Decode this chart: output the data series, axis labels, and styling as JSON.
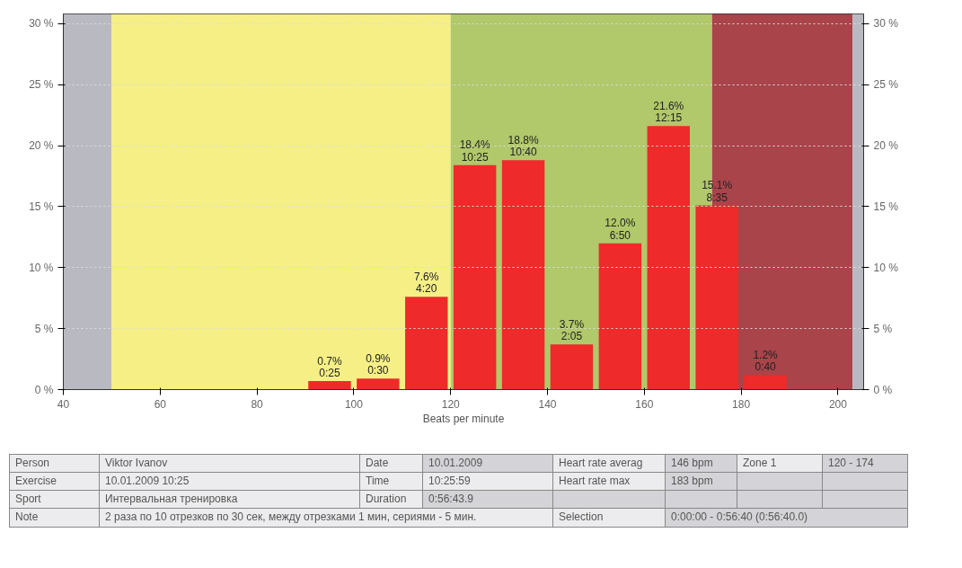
{
  "chart_data": {
    "type": "histogram",
    "xlabel": "Beats per minute",
    "bins": [
      90,
      100,
      110,
      120,
      130,
      140,
      150,
      160,
      170,
      180,
      190
    ],
    "values": [
      0.7,
      0.9,
      7.6,
      18.4,
      18.8,
      3.7,
      12.0,
      21.6,
      15.1,
      1.2
    ],
    "value_labels": [
      "0.7%\n0:25",
      "0.9%\n0:30",
      "7.6%\n4:20",
      "18.4%\n10:25",
      "18.8%\n10:40",
      "3.7%\n2:05",
      "12.0%\n6:50",
      "21.6%\n12:15",
      "15.1%\n8:35",
      "1.2%\n0:40"
    ],
    "color": "#ee2a2a",
    "xlim": [
      40,
      205.3
    ],
    "xticks": [
      40,
      60,
      80,
      100,
      120,
      140,
      160,
      180,
      200
    ],
    "ylim": [
      0,
      30.8
    ],
    "yticks": [
      {
        "value": 0,
        "label": "0 %"
      },
      {
        "value": 5,
        "label": "5 %"
      },
      {
        "value": 10,
        "label": "10 %"
      },
      {
        "value": 15,
        "label": "15 %"
      },
      {
        "value": 20,
        "label": "20 %"
      },
      {
        "value": 25,
        "label": "25 %"
      },
      {
        "value": 30,
        "label": "30 %"
      }
    ],
    "y2lim": [
      0,
      30.8
    ],
    "y2ticks": [
      {
        "value": 0,
        "label": "0 %"
      },
      {
        "value": 5,
        "label": "5 %"
      },
      {
        "value": 10,
        "label": "10 %"
      },
      {
        "value": 15,
        "label": "15 %"
      },
      {
        "value": 20,
        "label": "20 %"
      },
      {
        "value": 25,
        "label": "25 %"
      },
      {
        "value": 30,
        "label": "30 %"
      }
    ],
    "grid": "y",
    "bands": [
      {
        "axis": "x",
        "from": 40,
        "to": 50,
        "color": "#b9b9c1"
      },
      {
        "axis": "x",
        "from": 50,
        "to": 120,
        "color": "#f5ef86"
      },
      {
        "axis": "x",
        "from": 120,
        "to": 174,
        "color": "#b1c86b"
      },
      {
        "axis": "x",
        "from": 174,
        "to": 203,
        "color": "#a9444a"
      },
      {
        "axis": "x",
        "from": 203,
        "to": 205.3,
        "color": "#b9b9c1"
      }
    ],
    "annotations": [
      "Person",
      "Viktor Ivanov",
      "Date",
      "10.01.2009",
      "Heart rate averag",
      "146 bpm",
      "Zone 1",
      "120 - 174",
      "Exercise",
      "10.01.2009 10:25",
      "Time",
      "10:25:59",
      "Heart rate max",
      "183 bpm",
      "Sport",
      "Интервальная тренировка",
      "Duration",
      "0:56:43.9",
      "Note",
      "2 раза по 10 отрезков по 30 сек, между отрезками 1 мин, сериями - 5 мин.",
      "Selection",
      "0:00:00 - 0:56:40 (0:56:40.0)"
    ]
  }
}
